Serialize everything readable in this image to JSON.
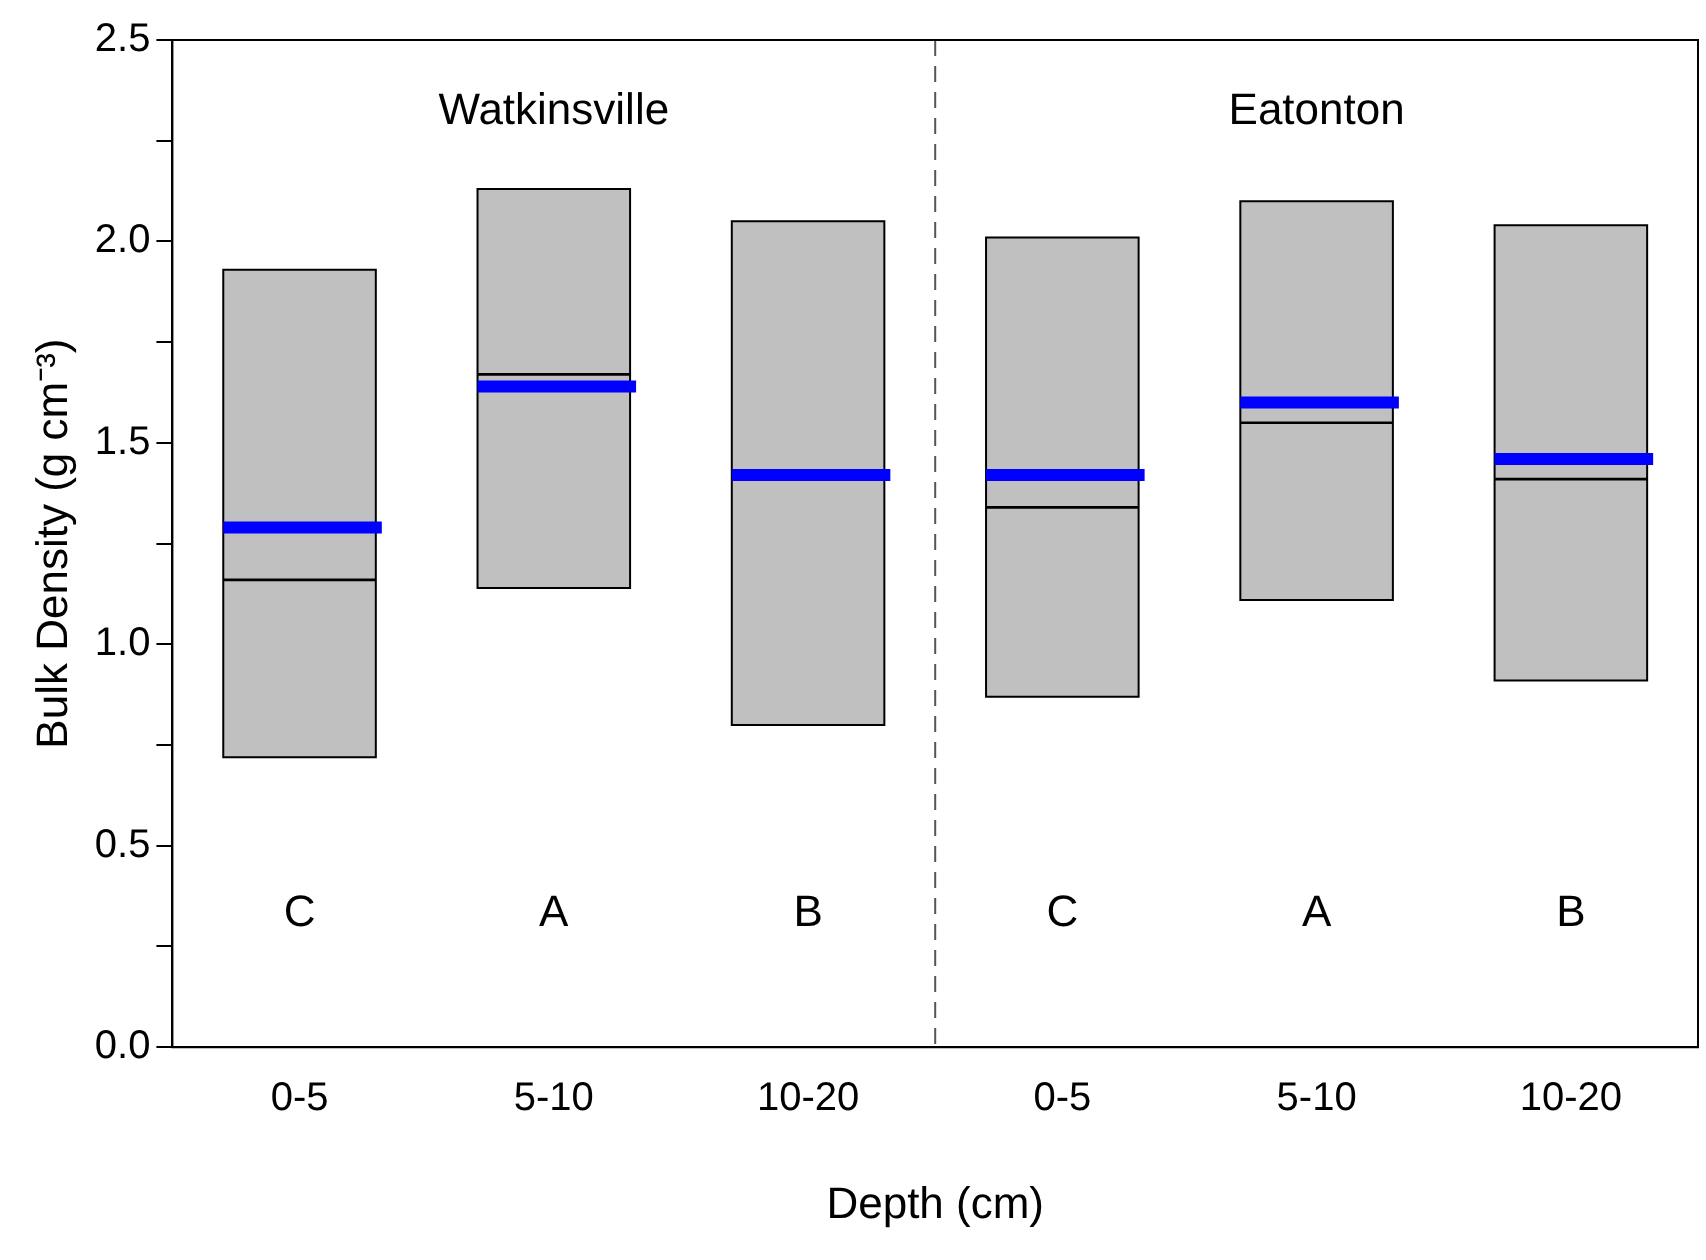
{
  "chart_data": {
    "type": "box",
    "xlabel": "Depth (cm)",
    "ylabel": "Bulk Density (g cm⁻³)",
    "categories": [
      "0-5",
      "5-10",
      "10-20",
      "0-5",
      "5-10",
      "10-20"
    ],
    "color": "#c0c0c0",
    "boxes": [
      {
        "low": 0.72,
        "q1": 0.72,
        "median": 1.16,
        "q3": 1.93,
        "high": 1.93,
        "mean": 1.29
      },
      {
        "low": 1.14,
        "q1": 1.14,
        "median": 1.67,
        "q3": 2.13,
        "high": 2.13,
        "mean": 1.64
      },
      {
        "low": 0.8,
        "q1": 0.8,
        "median": 1.42,
        "q3": 2.05,
        "high": 2.05,
        "mean": 1.42
      },
      {
        "low": 0.87,
        "q1": 0.87,
        "median": 1.34,
        "q3": 2.01,
        "high": 2.01,
        "mean": 1.42
      },
      {
        "low": 1.11,
        "q1": 1.11,
        "median": 1.55,
        "q3": 2.1,
        "high": 2.1,
        "mean": 1.6
      },
      {
        "low": 0.91,
        "q1": 0.91,
        "median": 1.41,
        "q3": 2.04,
        "high": 2.04,
        "mean": 1.46
      }
    ],
    "ylim": [
      0,
      2.5
    ],
    "yticks": [
      {
        "value": 0,
        "label": "0.0"
      },
      {
        "value": 0.25,
        "label": null
      },
      {
        "value": 0.5,
        "label": "0.5"
      },
      {
        "value": 0.75,
        "label": null
      },
      {
        "value": 1,
        "label": "1.0"
      },
      {
        "value": 1.25,
        "label": null
      },
      {
        "value": 1.5,
        "label": "1.5"
      },
      {
        "value": 1.75,
        "label": null
      },
      {
        "value": 2,
        "label": "2.0"
      },
      {
        "value": 2.25,
        "label": null
      },
      {
        "value": 2.5,
        "label": "2.5"
      }
    ],
    "annotations": [
      "Watkinsville",
      "Eatonton",
      "C",
      "A",
      "B",
      "C",
      "A",
      "B"
    ],
    "grid": false,
    "legend": false
  }
}
